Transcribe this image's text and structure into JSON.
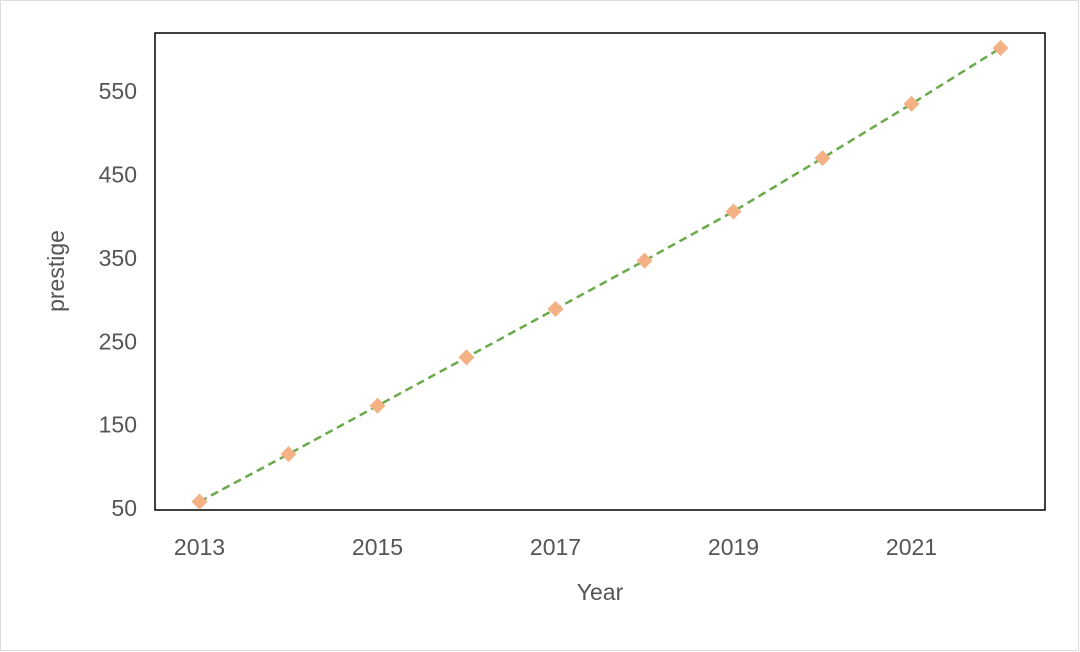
{
  "chart_data": {
    "type": "line",
    "x_label": "Year",
    "y_label": "prestige",
    "x": [
      2013,
      2014,
      2015,
      2016,
      2017,
      2018,
      2019,
      2020,
      2021,
      2022
    ],
    "values": [
      60,
      117,
      175,
      233,
      291,
      349,
      408,
      472,
      537,
      604
    ],
    "color": "#6aaa4a",
    "marker_color": "#f4b183",
    "line_style": "dashed",
    "marker": "diamond",
    "xlim": [
      2012.5,
      2022.5
    ],
    "xticks": [
      2013,
      2015,
      2017,
      2019,
      2021
    ],
    "ylim": [
      50,
      622
    ],
    "yticks": [
      50,
      150,
      250,
      350,
      450,
      550
    ],
    "grid": false
  }
}
